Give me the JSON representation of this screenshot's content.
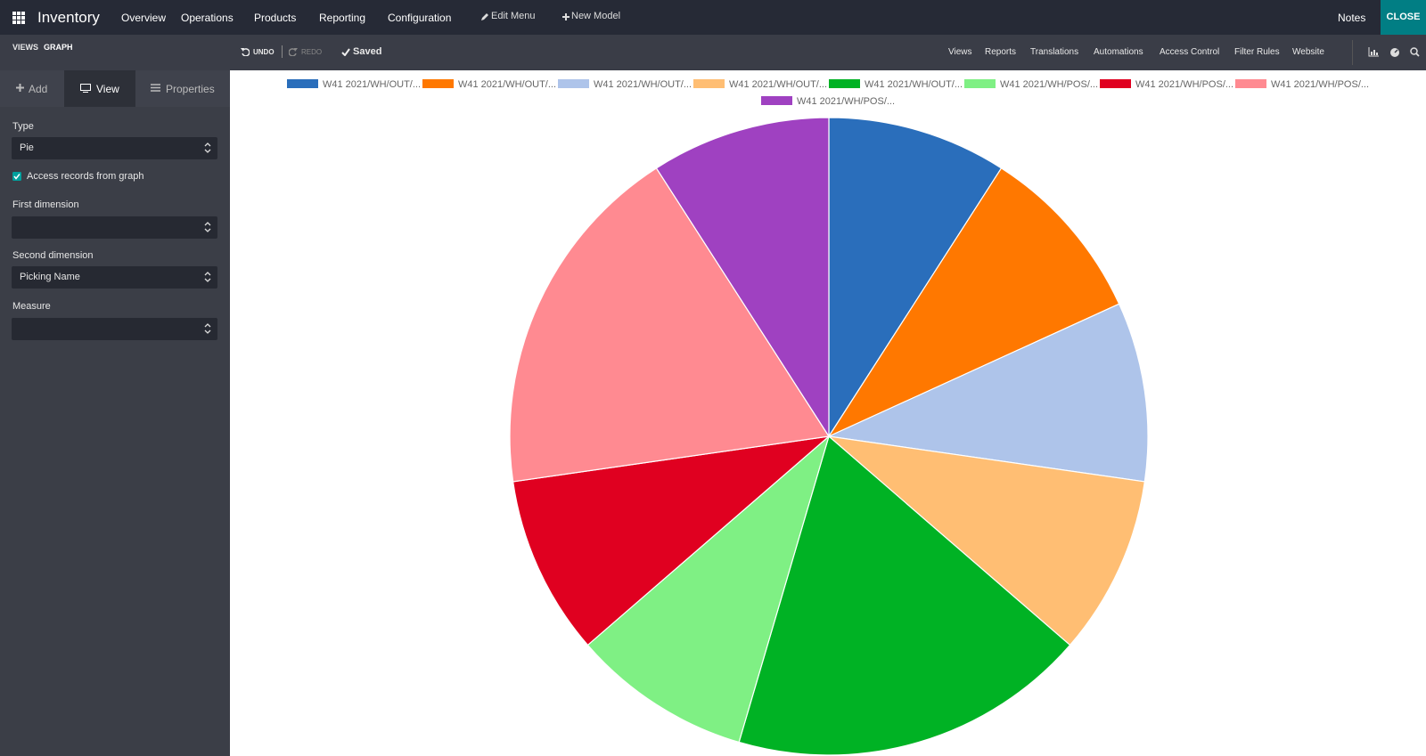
{
  "navbar": {
    "app": "Inventory",
    "menu": [
      "Overview",
      "Operations",
      "Products",
      "Reporting",
      "Configuration"
    ],
    "edit_menu": "Edit Menu",
    "new_model": "New Model",
    "notes": "Notes",
    "close": "CLOSE"
  },
  "toolbar": {
    "views": "VIEWS",
    "graph": "GRAPH",
    "undo": "UNDO",
    "redo": "REDO",
    "saved": "Saved",
    "links": [
      "Views",
      "Reports",
      "Translations",
      "Automations",
      "Access Control",
      "Filter Rules",
      "Website"
    ]
  },
  "sidebar": {
    "tabs": [
      "Add",
      "View",
      "Properties"
    ],
    "type_label": "Type",
    "type_value": "Pie",
    "checkbox": "Access records from graph",
    "first_dimension": "First dimension",
    "second_dimension": "Second dimension",
    "second_value": "Picking Name",
    "measure": "Measure"
  },
  "chart_data": {
    "type": "pie",
    "categories": [
      "W41 2021/WH/OUT/...",
      "W41 2021/WH/OUT/...",
      "W41 2021/WH/OUT/...",
      "W41 2021/WH/OUT/...",
      "W41 2021/WH/OUT/...",
      "W41 2021/WH/POS/...",
      "W41 2021/WH/POS/...",
      "W41 2021/WH/POS/...",
      "W41 2021/WH/POS/..."
    ],
    "values": [
      1,
      1,
      1,
      1,
      2,
      1,
      1,
      2,
      1
    ],
    "colors": [
      "#2a6ebb",
      "#ff7800",
      "#aec4ea",
      "#ffbe73",
      "#00b224",
      "#7ff084",
      "#e00020",
      "#ff8a91",
      "#9f41c1"
    ]
  }
}
